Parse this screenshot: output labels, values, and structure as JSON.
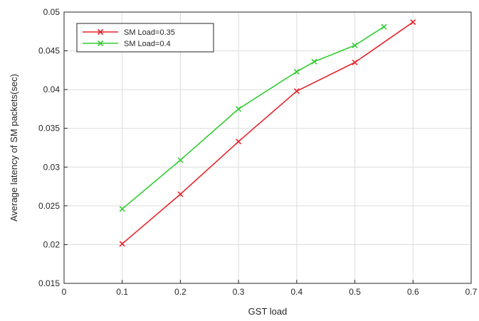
{
  "chart_data": {
    "type": "line",
    "title": "",
    "xlabel": "GST load",
    "ylabel": "Average latency of SM packets(sec)",
    "xlim": [
      0,
      0.7
    ],
    "ylim": [
      0.015,
      0.05
    ],
    "grid": true,
    "legend_position": "top-left",
    "x_tick_values": [
      0,
      0.1,
      0.2,
      0.3,
      0.4,
      0.5,
      0.6,
      0.7
    ],
    "x_tick_labels": [
      "0",
      "0.1",
      "0.2",
      "0.3",
      "0.4",
      "0.5",
      "0.6",
      "0.7"
    ],
    "y_tick_values": [
      0.015,
      0.02,
      0.025,
      0.03,
      0.035,
      0.04,
      0.045,
      0.05
    ],
    "y_tick_labels": [
      "0.015",
      "0.02",
      "0.025",
      "0.03",
      "0.035",
      "0.04",
      "0.045",
      "0.05"
    ],
    "series": [
      {
        "name": "SM Load=0.35",
        "color": "#e8232a",
        "marker": "x",
        "x": [
          0.1,
          0.2,
          0.3,
          0.4,
          0.5,
          0.6
        ],
        "y": [
          0.0201,
          0.0265,
          0.0333,
          0.0398,
          0.0435,
          0.0487
        ]
      },
      {
        "name": "SM Load=0.4",
        "color": "#33cc33",
        "marker": "x",
        "x": [
          0.1,
          0.2,
          0.3,
          0.4,
          0.43,
          0.5,
          0.55
        ],
        "y": [
          0.0246,
          0.0309,
          0.0375,
          0.0423,
          0.0436,
          0.0457,
          0.0481
        ]
      }
    ]
  }
}
